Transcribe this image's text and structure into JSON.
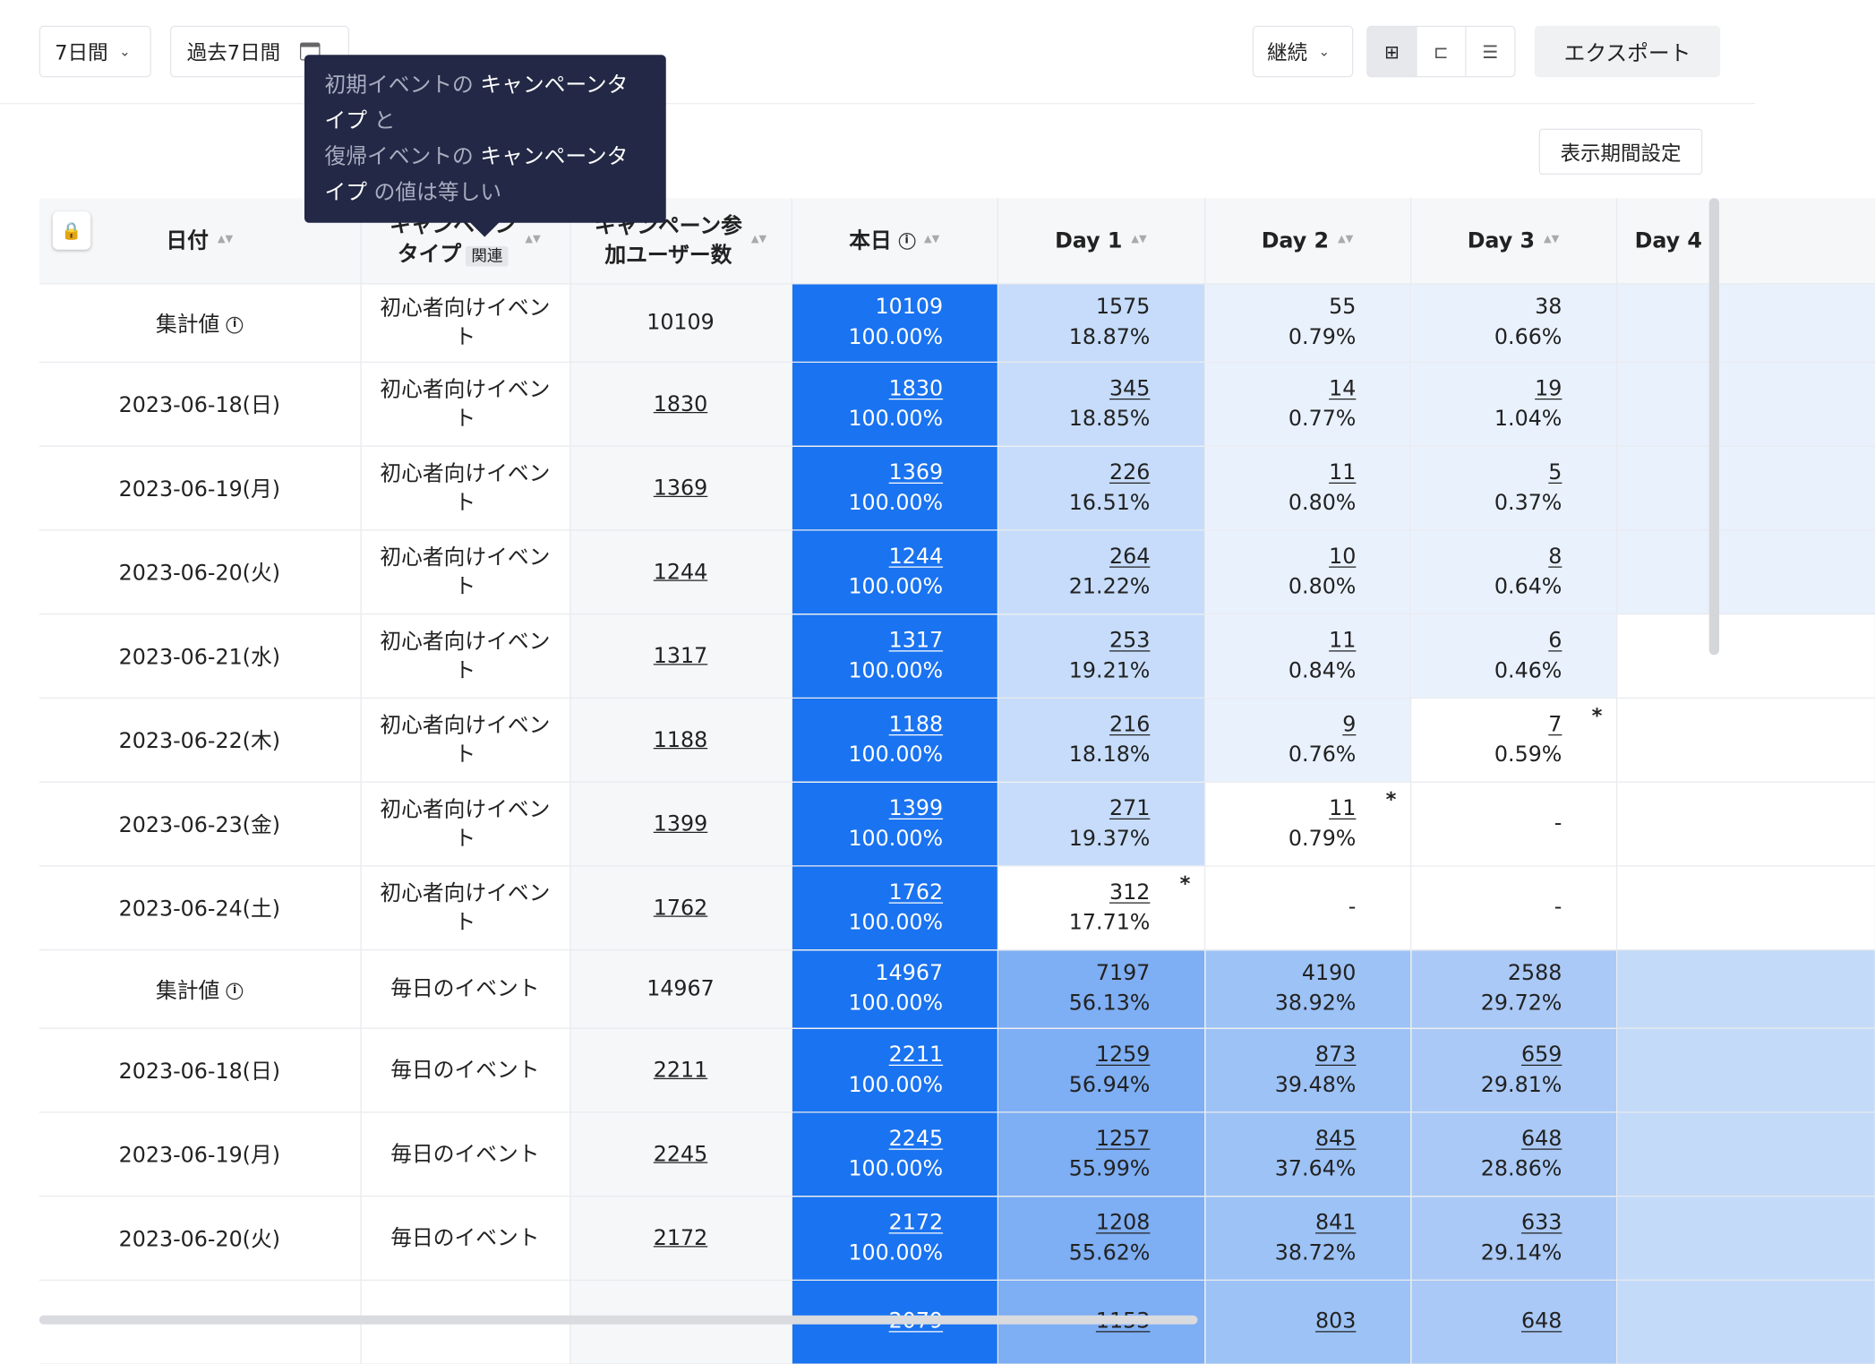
{
  "toolbar": {
    "period": "7日間",
    "range": "過去7日間",
    "mode": "継続",
    "export": "エクスポート",
    "display_setting": "表示期間設定"
  },
  "tooltip": {
    "line1_a": "初期イベントの",
    "line1_b": "キャンペーンタ",
    "line2_a": "イプ",
    "line2_b": "と",
    "line3_a": "復帰イベントの",
    "line3_b": "キャンペーンタ",
    "line4_a": "イプ",
    "line4_b": "の値は等しい"
  },
  "table": {
    "headers": {
      "date": "日付",
      "type_a": "キャンペーン",
      "type_b": "タイプ",
      "related": "関連",
      "users_a": "キャンペーン参",
      "users_b": "加ユーザー数",
      "today": "本日",
      "day1": "Day 1",
      "day2": "Day 2",
      "day3": "Day 3",
      "day4": "Day 4"
    },
    "rows": [
      {
        "date": "集計値",
        "agg": true,
        "type": "初心者向けイベント",
        "users": "10109",
        "today": [
          "10109",
          "100.00%"
        ],
        "d1": [
          "1575",
          "18.87%"
        ],
        "d2": [
          "55",
          "0.79%"
        ],
        "d3": [
          "38",
          "0.66%"
        ]
      },
      {
        "date": "2023-06-18(日)",
        "type": "初心者向けイベント",
        "users": "1830",
        "today": [
          "1830",
          "100.00%"
        ],
        "d1": [
          "345",
          "18.85%"
        ],
        "d2": [
          "14",
          "0.77%"
        ],
        "d3": [
          "19",
          "1.04%"
        ]
      },
      {
        "date": "2023-06-19(月)",
        "type": "初心者向けイベント",
        "users": "1369",
        "today": [
          "1369",
          "100.00%"
        ],
        "d1": [
          "226",
          "16.51%"
        ],
        "d2": [
          "11",
          "0.80%"
        ],
        "d3": [
          "5",
          "0.37%"
        ]
      },
      {
        "date": "2023-06-20(火)",
        "type": "初心者向けイベント",
        "users": "1244",
        "today": [
          "1244",
          "100.00%"
        ],
        "d1": [
          "264",
          "21.22%"
        ],
        "d2": [
          "10",
          "0.80%"
        ],
        "d3": [
          "8",
          "0.64%"
        ]
      },
      {
        "date": "2023-06-21(水)",
        "type": "初心者向けイベント",
        "users": "1317",
        "today": [
          "1317",
          "100.00%"
        ],
        "d1": [
          "253",
          "19.21%"
        ],
        "d2": [
          "11",
          "0.84%"
        ],
        "d3": [
          "6",
          "0.46%"
        ]
      },
      {
        "date": "2023-06-22(木)",
        "type": "初心者向けイベント",
        "users": "1188",
        "today": [
          "1188",
          "100.00%"
        ],
        "d1": [
          "216",
          "18.18%"
        ],
        "d2": [
          "9",
          "0.76%"
        ],
        "d3": [
          "7",
          "0.59%"
        ]
      },
      {
        "date": "2023-06-23(金)",
        "type": "初心者向けイベント",
        "users": "1399",
        "today": [
          "1399",
          "100.00%"
        ],
        "d1": [
          "271",
          "19.37%"
        ],
        "d2": [
          "11",
          "0.79%"
        ],
        "d3": "-"
      },
      {
        "date": "2023-06-24(土)",
        "type": "初心者向けイベント",
        "users": "1762",
        "today": [
          "1762",
          "100.00%"
        ],
        "d1": [
          "312",
          "17.71%"
        ],
        "d2": "-",
        "d3": "-"
      },
      {
        "date": "集計値",
        "agg": true,
        "type": "毎日のイベント",
        "users": "14967",
        "today": [
          "14967",
          "100.00%"
        ],
        "d1": [
          "7197",
          "56.13%"
        ],
        "d2": [
          "4190",
          "38.92%"
        ],
        "d3": [
          "2588",
          "29.72%"
        ]
      },
      {
        "date": "2023-06-18(日)",
        "type": "毎日のイベント",
        "users": "2211",
        "today": [
          "2211",
          "100.00%"
        ],
        "d1": [
          "1259",
          "56.94%"
        ],
        "d2": [
          "873",
          "39.48%"
        ],
        "d3": [
          "659",
          "29.81%"
        ]
      },
      {
        "date": "2023-06-19(月)",
        "type": "毎日のイベント",
        "users": "2245",
        "today": [
          "2245",
          "100.00%"
        ],
        "d1": [
          "1257",
          "55.99%"
        ],
        "d2": [
          "845",
          "37.64%"
        ],
        "d3": [
          "648",
          "28.86%"
        ]
      },
      {
        "date": "2023-06-20(火)",
        "type": "毎日のイベント",
        "users": "2172",
        "today": [
          "2172",
          "100.00%"
        ],
        "d1": [
          "1208",
          "55.62%"
        ],
        "d2": [
          "841",
          "38.72%"
        ],
        "d3": [
          "633",
          "29.14%"
        ]
      },
      {
        "date": "",
        "type": "",
        "users": "",
        "today": [
          "2079",
          ""
        ],
        "d1": [
          "1153",
          ""
        ],
        "d2": [
          "803",
          ""
        ],
        "d3": [
          "648",
          ""
        ]
      }
    ]
  },
  "colors": {
    "today": "#1a73f0",
    "d1_low": "#c6dcfa",
    "d2_low": "#e9f1fd",
    "d1_high": "#7eaef3",
    "d2_high": "#9cc2f6",
    "d3_high": "#aac9f6",
    "d4_high": "#c4daf9"
  }
}
